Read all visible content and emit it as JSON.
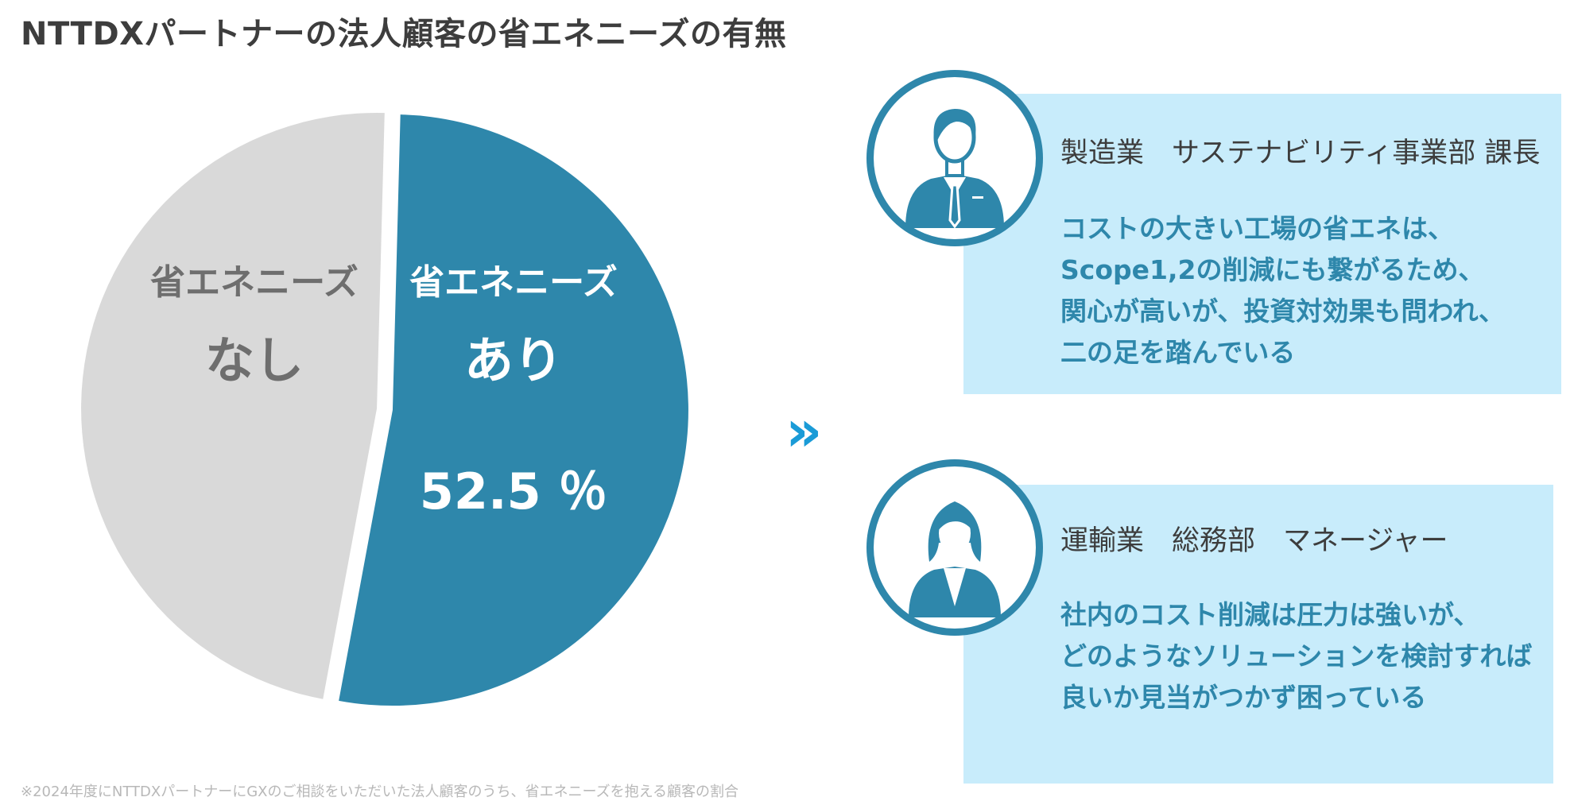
{
  "title": "NTTDXパートナーの法人顧客の省エネニーズの有無",
  "chart_data": {
    "type": "pie",
    "slices": [
      {
        "label_line1": "省エネニーズ",
        "label_line2": "あり",
        "value": 52.5,
        "value_label": "52.5 ％",
        "color": "#2e87ab"
      },
      {
        "label_line1": "省エネニーズ",
        "label_line2": "なし",
        "value": 47.5,
        "color": "#d9d9d9"
      }
    ]
  },
  "arrow": "»",
  "cards": [
    {
      "avatar_icon": "male-businessman-icon",
      "role": "製造業　サステナビリティ事業部 課長",
      "quote_lines": [
        "コストの大きい工場の省エネは、",
        "Scope1,2の削減にも繋がるため、",
        "関心が高いが、投資対効果も問われ、",
        "二の足を踏んでいる"
      ]
    },
    {
      "avatar_icon": "female-businesswoman-icon",
      "role": "運輸業　総務部　マネージャー",
      "quote_lines": [
        "社内のコスト削減は圧力は強いが、",
        "どのようなソリューションを検討すれば",
        "良いか見当がつかず困っている"
      ]
    }
  ],
  "footnote": "※2024年度にNTTDXパートナーにGXのご相談をいただいた法人顧客のうち、省エネニーズを抱える顧客の割合",
  "colors": {
    "accent": "#2e87ab",
    "arrow": "#1a9bd7",
    "card_bg": "#c8ecfb",
    "pie_other": "#d9d9d9"
  }
}
